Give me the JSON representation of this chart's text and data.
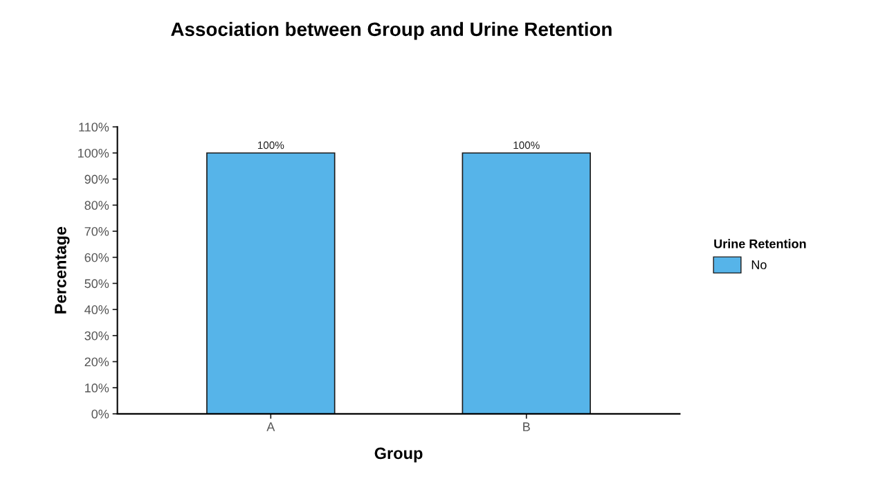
{
  "chart_data": {
    "type": "bar",
    "title": "Association between Group and Urine Retention",
    "xlabel": "Group",
    "ylabel": "Percentage",
    "legend_title": "Urine Retention",
    "categories": [
      "A",
      "B"
    ],
    "series": [
      {
        "name": "No",
        "color": "#56b4e9",
        "values": [
          100,
          100
        ],
        "value_labels": [
          "100%",
          "100%"
        ]
      }
    ],
    "ylim": [
      0,
      110
    ],
    "yticks": [
      {
        "value": 0,
        "label": "0%"
      },
      {
        "value": 10,
        "label": "10%"
      },
      {
        "value": 20,
        "label": "20%"
      },
      {
        "value": 30,
        "label": "30%"
      },
      {
        "value": 40,
        "label": "40%"
      },
      {
        "value": 50,
        "label": "50%"
      },
      {
        "value": 60,
        "label": "60%"
      },
      {
        "value": 70,
        "label": "70%"
      },
      {
        "value": 80,
        "label": "80%"
      },
      {
        "value": 90,
        "label": "90%"
      },
      {
        "value": 100,
        "label": "100%"
      },
      {
        "value": 110,
        "label": "110%"
      }
    ],
    "grid": false,
    "legend": "right"
  }
}
